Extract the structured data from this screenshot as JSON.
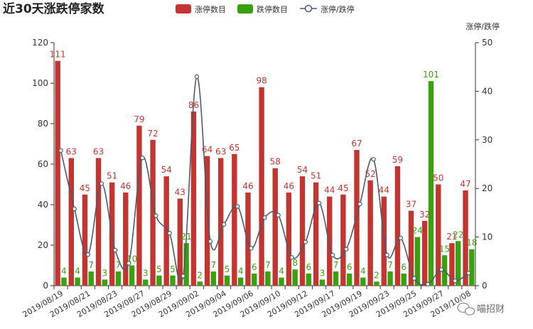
{
  "chart_data": {
    "type": "bar",
    "title": "近30天涨跌停家数",
    "y2label": "涨停/跌停",
    "ylim": [
      0,
      120
    ],
    "y2lim": [
      0,
      50
    ],
    "yticks": [
      0,
      20,
      40,
      60,
      80,
      100,
      120
    ],
    "y2ticks": [
      0,
      10,
      20,
      30,
      40,
      50
    ],
    "legend_position": "top-center",
    "categories": [
      "2019/08/19",
      "2019/08/20",
      "2019/08/21",
      "2019/08/22",
      "2019/08/23",
      "2019/08/26",
      "2019/08/27",
      "2019/08/28",
      "2019/08/29",
      "2019/08/30",
      "2019/09/02",
      "2019/09/03",
      "2019/09/04",
      "2019/09/05",
      "2019/09/06",
      "2019/09/09",
      "2019/09/10",
      "2019/09/11",
      "2019/09/12",
      "2019/09/16",
      "2019/09/17",
      "2019/09/18",
      "2019/09/19",
      "2019/09/20",
      "2019/09/23",
      "2019/09/24",
      "2019/09/25",
      "2019/09/26",
      "2019/09/27",
      "2019/09/30",
      "2019/10/08"
    ],
    "xtick_labels": [
      "2019/08/19",
      "",
      "2019/08/21",
      "",
      "2019/08/23",
      "",
      "2019/08/27",
      "",
      "2019/08/29",
      "",
      "2019/09/02",
      "",
      "2019/09/04",
      "",
      "2019/09/06",
      "",
      "2019/09/10",
      "",
      "2019/09/12",
      "",
      "2019/09/17",
      "",
      "2019/09/19",
      "",
      "2019/09/23",
      "",
      "2019/09/25",
      "",
      "2019/09/27",
      "",
      "2019/10/08"
    ],
    "series": [
      {
        "name": "涨停数目",
        "color": "#c23531",
        "values": [
          111,
          63,
          45,
          63,
          51,
          46,
          79,
          72,
          54,
          43,
          86,
          64,
          63,
          65,
          46,
          98,
          58,
          46,
          54,
          51,
          44,
          45,
          67,
          52,
          44,
          59,
          37,
          32,
          50,
          21,
          47
        ]
      },
      {
        "name": "跌停数目",
        "color": "#3aa00f",
        "values": [
          4,
          4,
          7,
          3,
          7,
          10,
          3,
          5,
          5,
          21,
          2,
          7,
          5,
          4,
          6,
          7,
          4,
          8,
          6,
          3,
          7,
          6,
          4,
          2,
          7,
          6,
          24,
          101,
          15,
          22,
          18
        ]
      },
      {
        "name": "涨停/跌停",
        "color": "#4d5a6b",
        "axis": "right",
        "values": [
          27.8,
          15.8,
          6.4,
          21.0,
          7.3,
          4.6,
          26.3,
          14.4,
          10.8,
          2.0,
          43.0,
          9.1,
          12.6,
          16.3,
          7.7,
          14.0,
          14.5,
          5.8,
          9.0,
          17.0,
          6.3,
          7.5,
          16.8,
          26.0,
          6.3,
          9.8,
          1.5,
          0.3,
          3.3,
          1.0,
          2.6
        ]
      }
    ]
  },
  "watermark": {
    "icon": "wechat-icon",
    "text": "喵招财"
  }
}
